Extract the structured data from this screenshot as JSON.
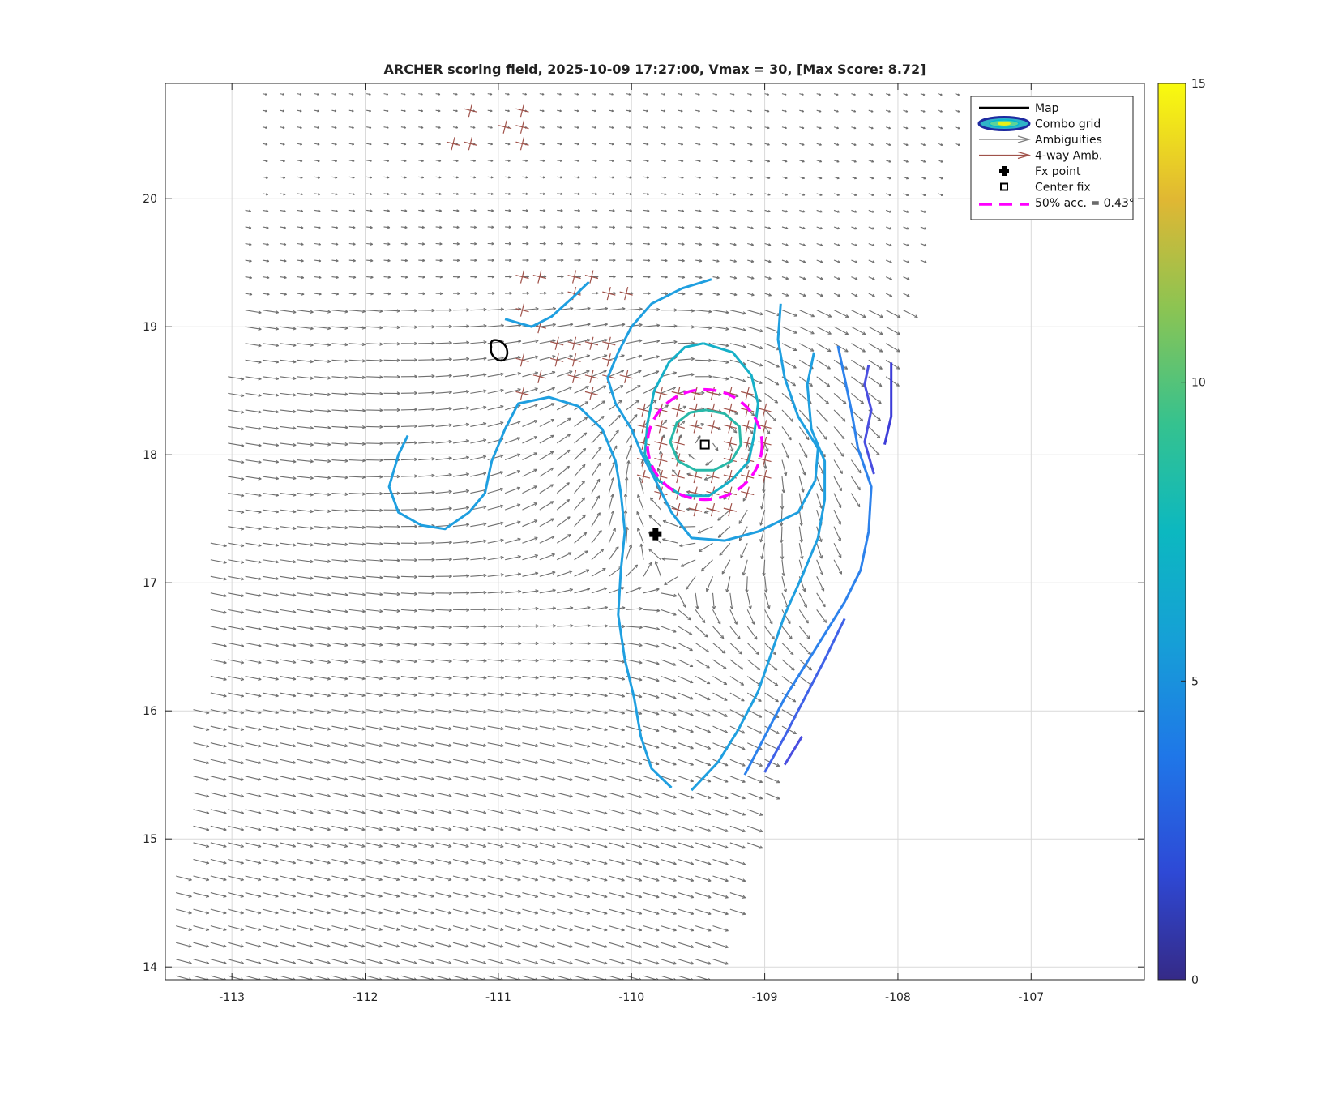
{
  "chart_data": {
    "type": "scatter",
    "title": "ARCHER scoring field, 2025-10-09 17:27:00, Vmax = 30, [Max Score: 8.72]",
    "xlabel": "",
    "ylabel": "",
    "xlim": [
      -113.5,
      -106.15
    ],
    "ylim": [
      13.9,
      20.9
    ],
    "x_ticks": [
      -113,
      -112,
      -111,
      -110,
      -109,
      -108,
      -107
    ],
    "y_ticks": [
      14,
      15,
      16,
      17,
      18,
      19,
      20
    ],
    "grid": true,
    "colorbar": {
      "limits": [
        0,
        15
      ],
      "ticks": [
        0,
        5,
        10,
        15
      ],
      "colormap": "parula"
    },
    "legend_position": "top-right",
    "legend": [
      {
        "label": "Map",
        "marker": "line",
        "color": "#000000"
      },
      {
        "label": "Combo grid",
        "marker": "ellipse",
        "color": "#3a3fd0"
      },
      {
        "label": "Ambiguities",
        "marker": "arrow",
        "color": "#7f7f7f"
      },
      {
        "label": "4-way Amb.",
        "marker": "arrow",
        "color": "#a0524a"
      },
      {
        "label": "Fx point",
        "marker": "filled-cross",
        "color": "#000000"
      },
      {
        "label": "Center fix",
        "marker": "square",
        "color": "#000000"
      },
      {
        "label": "50% acc. = 0.43°",
        "marker": "dashed-line",
        "color": "#ff00ff"
      }
    ],
    "fx_point": {
      "x": -109.82,
      "y": 17.38
    },
    "center_fix": {
      "x": -109.45,
      "y": 18.08
    },
    "accuracy_circle": {
      "x": -109.45,
      "y": 18.08,
      "radius_deg": 0.43
    },
    "storm_center_estimate": {
      "x": -109.45,
      "y": 18.05
    },
    "swath": {
      "corners": [
        [
          -112.8,
          21.0
        ],
        [
          -107.4,
          21.0
        ],
        [
          -109.4,
          13.9
        ],
        [
          -113.5,
          13.9
        ]
      ]
    },
    "contours": [
      {
        "level": 7.5,
        "color": "#28b8a8",
        "points": [
          [
            -109.44,
            18.35
          ],
          [
            -109.3,
            18.32
          ],
          [
            -109.19,
            18.22
          ],
          [
            -109.18,
            18.08
          ],
          [
            -109.25,
            17.95
          ],
          [
            -109.38,
            17.88
          ],
          [
            -109.52,
            17.88
          ],
          [
            -109.65,
            17.95
          ],
          [
            -109.71,
            18.1
          ],
          [
            -109.66,
            18.25
          ],
          [
            -109.56,
            18.33
          ],
          [
            -109.44,
            18.35
          ]
        ]
      },
      {
        "level": 6.5,
        "color": "#16b0c8",
        "points": [
          [
            -109.46,
            18.87
          ],
          [
            -109.24,
            18.8
          ],
          [
            -109.1,
            18.62
          ],
          [
            -109.05,
            18.4
          ],
          [
            -109.08,
            18.15
          ],
          [
            -109.12,
            17.95
          ],
          [
            -109.25,
            17.8
          ],
          [
            -109.42,
            17.68
          ],
          [
            -109.62,
            17.68
          ],
          [
            -109.8,
            17.8
          ],
          [
            -109.9,
            18.0
          ],
          [
            -109.88,
            18.25
          ],
          [
            -109.83,
            18.5
          ],
          [
            -109.72,
            18.72
          ],
          [
            -109.6,
            18.84
          ],
          [
            -109.46,
            18.87
          ]
        ]
      },
      {
        "level": 6.0,
        "color": "#1f9fe0",
        "points": [
          [
            -109.4,
            19.37
          ],
          [
            -109.62,
            19.3
          ],
          [
            -109.85,
            19.18
          ],
          [
            -110.0,
            19.0
          ],
          [
            -110.1,
            18.8
          ],
          [
            -110.18,
            18.6
          ],
          [
            -110.12,
            18.4
          ],
          [
            -110.0,
            18.2
          ],
          [
            -109.92,
            18.0
          ],
          [
            -109.82,
            17.8
          ],
          [
            -109.7,
            17.55
          ],
          [
            -109.55,
            17.35
          ],
          [
            -109.3,
            17.33
          ],
          [
            -109.05,
            17.4
          ],
          [
            -108.75,
            17.55
          ],
          [
            -108.62,
            17.8
          ],
          [
            -108.6,
            18.05
          ],
          [
            -108.75,
            18.3
          ],
          [
            -108.85,
            18.6
          ],
          [
            -108.9,
            18.9
          ],
          [
            -108.88,
            19.18
          ]
        ]
      },
      {
        "level": 5.5,
        "color": "#1f9fe0",
        "points": [
          [
            -109.55,
            15.38
          ],
          [
            -109.35,
            15.6
          ],
          [
            -109.2,
            15.85
          ],
          [
            -109.05,
            16.15
          ],
          [
            -108.95,
            16.45
          ],
          [
            -108.85,
            16.75
          ],
          [
            -108.72,
            17.05
          ],
          [
            -108.6,
            17.35
          ],
          [
            -108.55,
            17.65
          ],
          [
            -108.55,
            17.95
          ],
          [
            -108.65,
            18.2
          ],
          [
            -108.68,
            18.55
          ],
          [
            -108.63,
            18.8
          ]
        ]
      },
      {
        "level": 5.5,
        "color": "#1f9fe0",
        "points": [
          [
            -110.62,
            18.45
          ],
          [
            -110.4,
            18.38
          ],
          [
            -110.22,
            18.2
          ],
          [
            -110.12,
            17.95
          ],
          [
            -110.08,
            17.7
          ],
          [
            -110.05,
            17.4
          ],
          [
            -110.08,
            17.1
          ],
          [
            -110.1,
            16.75
          ],
          [
            -110.05,
            16.4
          ],
          [
            -109.98,
            16.1
          ],
          [
            -109.93,
            15.8
          ],
          [
            -109.85,
            15.55
          ],
          [
            -109.7,
            15.4
          ]
        ]
      },
      {
        "level": 5.5,
        "color": "#1f9fe0",
        "points": [
          [
            -110.62,
            18.45
          ],
          [
            -110.85,
            18.4
          ],
          [
            -110.95,
            18.2
          ],
          [
            -111.05,
            17.95
          ],
          [
            -111.1,
            17.7
          ],
          [
            -111.22,
            17.55
          ],
          [
            -111.4,
            17.42
          ],
          [
            -111.58,
            17.45
          ],
          [
            -111.75,
            17.55
          ],
          [
            -111.82,
            17.75
          ],
          [
            -111.75,
            18.0
          ],
          [
            -111.68,
            18.15
          ]
        ]
      },
      {
        "level": 5.5,
        "color": "#1f9fe0",
        "points": [
          [
            -110.95,
            19.06
          ],
          [
            -110.75,
            19.0
          ],
          [
            -110.6,
            19.08
          ],
          [
            -110.45,
            19.22
          ],
          [
            -110.32,
            19.35
          ]
        ]
      },
      {
        "level": 5.0,
        "color": "#2d82ec",
        "points": [
          [
            -109.15,
            15.5
          ],
          [
            -109.0,
            15.8
          ],
          [
            -108.85,
            16.1
          ],
          [
            -108.7,
            16.35
          ],
          [
            -108.55,
            16.6
          ],
          [
            -108.4,
            16.85
          ],
          [
            -108.28,
            17.1
          ],
          [
            -108.22,
            17.4
          ],
          [
            -108.2,
            17.75
          ],
          [
            -108.3,
            18.05
          ],
          [
            -108.35,
            18.35
          ],
          [
            -108.4,
            18.6
          ],
          [
            -108.45,
            18.85
          ]
        ]
      },
      {
        "level": 4.0,
        "color": "#4062e8",
        "points": [
          [
            -109.0,
            15.52
          ],
          [
            -108.85,
            15.8
          ],
          [
            -108.7,
            16.1
          ],
          [
            -108.55,
            16.4
          ],
          [
            -108.4,
            16.72
          ]
        ]
      },
      {
        "level": 3.5,
        "color": "#4a4ee0",
        "points": [
          [
            -108.85,
            15.58
          ],
          [
            -108.72,
            15.8
          ]
        ]
      },
      {
        "level": 3.0,
        "color": "#4a4ee0",
        "points": [
          [
            -108.18,
            17.85
          ],
          [
            -108.25,
            18.1
          ],
          [
            -108.2,
            18.35
          ],
          [
            -108.25,
            18.55
          ],
          [
            -108.22,
            18.7
          ]
        ]
      },
      {
        "level": 2.5,
        "color": "#3c3cd8",
        "points": [
          [
            -108.1,
            18.08
          ],
          [
            -108.05,
            18.3
          ],
          [
            -108.05,
            18.5
          ],
          [
            -108.05,
            18.72
          ]
        ]
      }
    ]
  }
}
